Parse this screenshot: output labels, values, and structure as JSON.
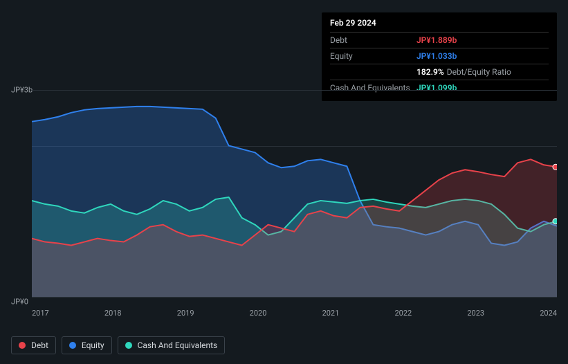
{
  "tooltip": {
    "date": "Feb 29 2024",
    "rows": [
      {
        "label": "Debt",
        "value": "JP¥1.889b",
        "color": "#e8424a"
      },
      {
        "label": "Equity",
        "value": "JP¥1.033b",
        "color": "#2f80ed"
      },
      {
        "label": "",
        "value": "182.9%",
        "sub": "Debt/Equity Ratio",
        "color": "#ffffff"
      },
      {
        "label": "Cash And Equivalents",
        "value": "JP¥1.099b",
        "color": "#2fd7bd"
      }
    ]
  },
  "chart": {
    "type": "area",
    "background": "#141a1f",
    "grid_color": "#2a3138",
    "y_labels": [
      "JP¥3b",
      "JP¥0"
    ],
    "x_labels": [
      "2017",
      "2018",
      "2019",
      "2020",
      "2021",
      "2022",
      "2023",
      "2024"
    ],
    "series": [
      {
        "name": "Equity",
        "color": "#2f80ed",
        "fill": "rgba(47,128,237,0.28)",
        "values": [
          2.55,
          2.58,
          2.62,
          2.68,
          2.72,
          2.74,
          2.75,
          2.76,
          2.77,
          2.77,
          2.76,
          2.75,
          2.74,
          2.73,
          2.6,
          2.2,
          2.15,
          2.1,
          1.95,
          1.88,
          1.9,
          1.98,
          2.0,
          1.95,
          1.9,
          1.4,
          1.05,
          1.02,
          1.0,
          0.95,
          0.9,
          0.95,
          1.05,
          1.1,
          1.05,
          0.78,
          0.75,
          0.8,
          1.0,
          1.1,
          1.03
        ]
      },
      {
        "name": "Cash And Equivalents",
        "color": "#2fd7bd",
        "fill": "rgba(47,215,189,0.22)",
        "values": [
          1.4,
          1.35,
          1.32,
          1.25,
          1.22,
          1.3,
          1.35,
          1.25,
          1.2,
          1.28,
          1.4,
          1.35,
          1.25,
          1.3,
          1.42,
          1.45,
          1.15,
          1.05,
          0.9,
          0.95,
          1.15,
          1.35,
          1.4,
          1.38,
          1.36,
          1.4,
          1.42,
          1.38,
          1.35,
          1.32,
          1.3,
          1.35,
          1.4,
          1.42,
          1.4,
          1.35,
          1.2,
          1.0,
          0.95,
          1.05,
          1.1
        ]
      },
      {
        "name": "Debt",
        "color": "#e8424a",
        "fill": "rgba(232,66,74,0.22)",
        "values": [
          0.85,
          0.8,
          0.78,
          0.75,
          0.8,
          0.85,
          0.82,
          0.8,
          0.9,
          1.02,
          1.05,
          0.95,
          0.88,
          0.9,
          0.85,
          0.8,
          0.75,
          0.9,
          1.05,
          1.0,
          0.95,
          1.2,
          1.25,
          1.18,
          1.15,
          1.3,
          1.32,
          1.28,
          1.25,
          1.4,
          1.55,
          1.7,
          1.8,
          1.85,
          1.82,
          1.78,
          1.75,
          1.95,
          2.0,
          1.92,
          1.89
        ]
      }
    ],
    "y_max": 3.0,
    "y_min": 0.0,
    "line_width": 2
  },
  "legend": [
    {
      "label": "Debt",
      "color": "#e8424a"
    },
    {
      "label": "Equity",
      "color": "#2f80ed"
    },
    {
      "label": "Cash And Equivalents",
      "color": "#2fd7bd"
    }
  ]
}
